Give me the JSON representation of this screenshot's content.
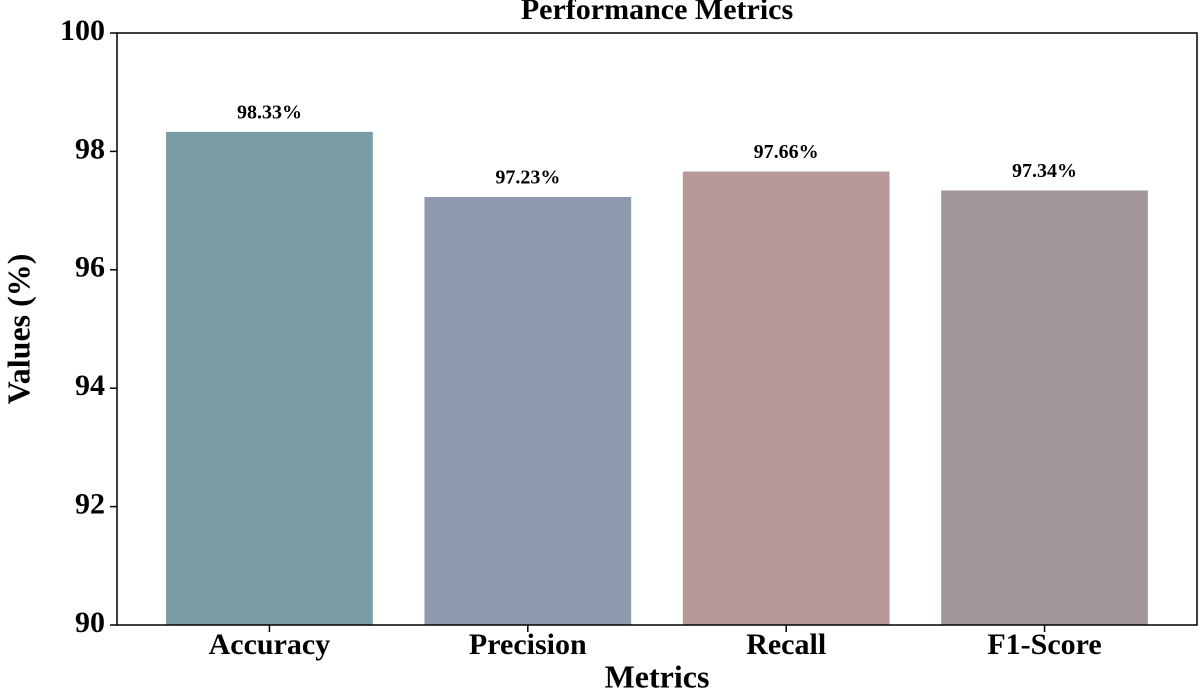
{
  "chart_data": {
    "type": "bar",
    "title": "Performance Metrics",
    "x_label": "Metrics",
    "y_label": "Values (%)",
    "categories": [
      "Accuracy",
      "Precision",
      "Recall",
      "F1-Score"
    ],
    "values": [
      98.33,
      97.23,
      97.66,
      97.34
    ],
    "value_labels": [
      "98.33%",
      "97.23%",
      "97.66%",
      "97.34%"
    ],
    "colors": [
      "#799ba2",
      "#8d9aae",
      "#b89899",
      "#a3969d"
    ],
    "ylim": [
      90,
      100
    ],
    "yticks": [
      90,
      92,
      94,
      96,
      98,
      100
    ],
    "grid": false
  }
}
